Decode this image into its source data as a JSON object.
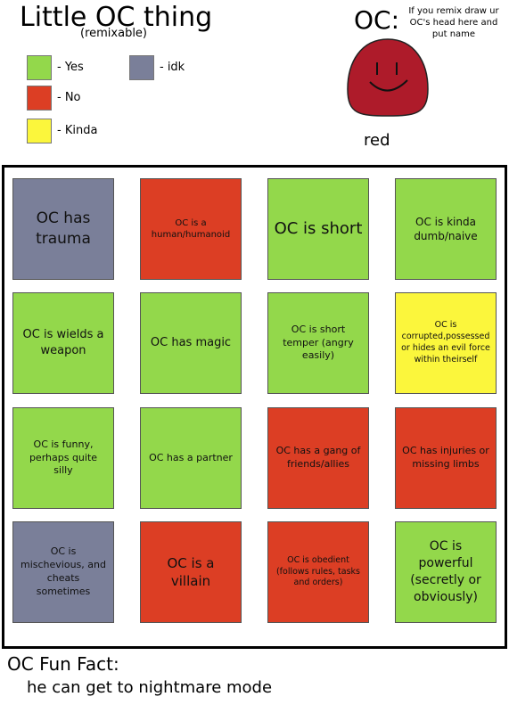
{
  "header": {
    "title": "Little OC thing",
    "subtitle": "(remixable)"
  },
  "legend": [
    {
      "label": "- Yes",
      "color": "#93d84b"
    },
    {
      "label": "- No",
      "color": "#dc3e24"
    },
    {
      "label": "- Kinda",
      "color": "#fbf63c"
    },
    {
      "label": "- idk",
      "color": "#7a7f99"
    }
  ],
  "oc": {
    "label": "OC:",
    "note": "If you remix draw ur OC's head here and put name",
    "name": "red"
  },
  "grid": {
    "cells": [
      {
        "text": "OC has trauma",
        "color": "#7a7f99"
      },
      {
        "text": "OC is a human/humanoid",
        "color": "#dc3e24"
      },
      {
        "text": "OC is short",
        "color": "#93d84b"
      },
      {
        "text": "OC is kinda dumb/naive",
        "color": "#93d84b"
      },
      {
        "text": "OC is wields a weapon",
        "color": "#93d84b"
      },
      {
        "text": "OC has magic",
        "color": "#93d84b"
      },
      {
        "text": "OC is short temper (angry easily)",
        "color": "#93d84b"
      },
      {
        "text": "OC is corrupted,possessed or hides an evil force within theirself",
        "color": "#fbf63c"
      },
      {
        "text": "OC is funny, perhaps quite silly",
        "color": "#93d84b"
      },
      {
        "text": "OC has a partner",
        "color": "#93d84b"
      },
      {
        "text": "OC has a gang of friends/allies",
        "color": "#dc3e24"
      },
      {
        "text": "OC has injuries or missing limbs",
        "color": "#dc3e24"
      },
      {
        "text": "OC is mischevious, and cheats sometimes",
        "color": "#7a7f99"
      },
      {
        "text": "OC is a villain",
        "color": "#dc3e24"
      },
      {
        "text": "OC is obedient (follows rules, tasks and orders)",
        "color": "#dc3e24"
      },
      {
        "text": "OC is powerful (secretly or obviously)",
        "color": "#93d84b"
      }
    ]
  },
  "footer": {
    "title": "OC Fun Fact:",
    "text": "he can get to nightmare mode"
  }
}
